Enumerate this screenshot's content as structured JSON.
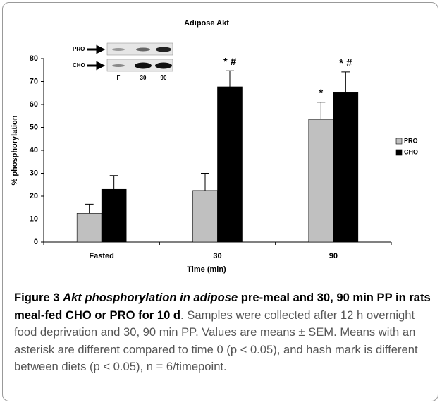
{
  "chart_data": {
    "type": "bar",
    "title": "Adipose Akt",
    "x_label": "Time (min)",
    "y_label": "% phosphorylation",
    "categories": [
      "Fasted",
      "30",
      "90"
    ],
    "series": [
      {
        "name": "PRO",
        "color": "#c0c0c0",
        "values": [
          12.5,
          22.5,
          53.5
        ],
        "errors": [
          4,
          7.5,
          7.5
        ]
      },
      {
        "name": "CHO",
        "color": "#000000",
        "values": [
          23,
          67.7,
          65.2
        ],
        "errors": [
          6,
          7,
          9
        ]
      }
    ],
    "ylim": [
      0,
      80
    ],
    "yticks": [
      0,
      10,
      20,
      30,
      40,
      50,
      60,
      70,
      80
    ],
    "grid": false,
    "legend": "right",
    "annotations": [
      {
        "text": "* #",
        "category": "30",
        "series": "CHO"
      },
      {
        "text": "*",
        "category": "90",
        "series": "PRO"
      },
      {
        "text": "* #",
        "category": "90",
        "series": "CHO"
      }
    ],
    "inset": {
      "rows": [
        "PRO",
        "CHO"
      ],
      "lanes": [
        "F",
        "30",
        "90"
      ]
    }
  },
  "caption": {
    "label": "Figure 3",
    "title_italic": "Akt phosphorylation in adipose",
    "title_bold": "pre-meal and 30, 90 min PP in rats meal-fed CHO or PRO for 10 d",
    "body": ". Samples were collected after 12 h overnight food deprivation and 30, 90 min PP. Values are means ± SEM. Means with an asterisk are different compared to time 0 (p < 0.05), and hash mark is different between diets (p < 0.05), n = 6/timepoint."
  }
}
